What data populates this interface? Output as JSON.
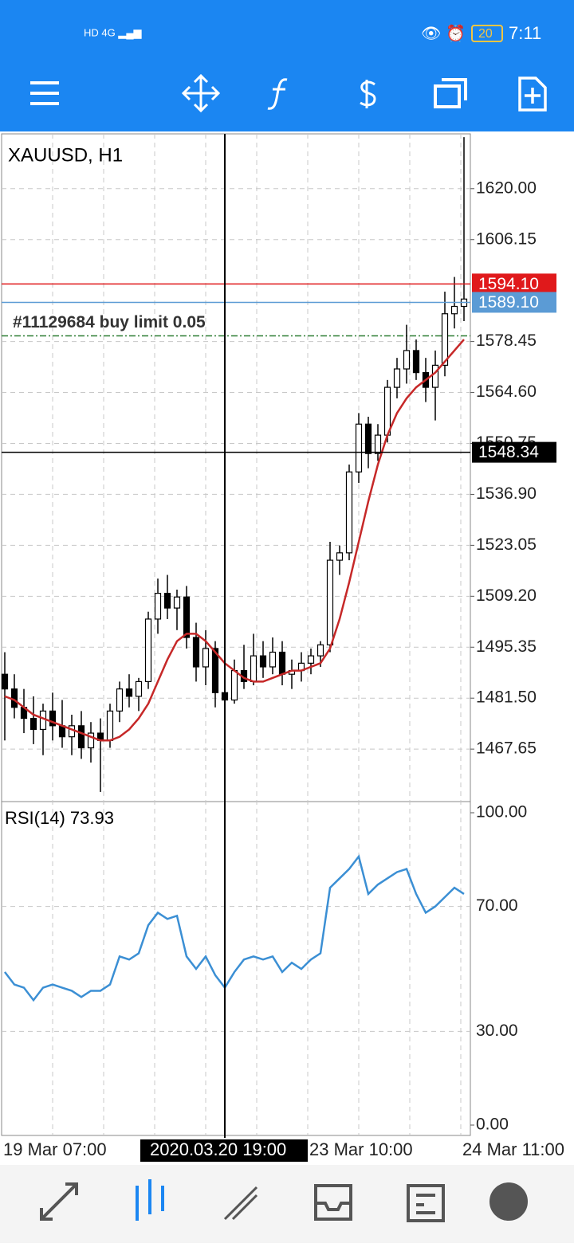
{
  "status_bar": {
    "time": "7:11",
    "battery": "20"
  },
  "chart_data": {
    "type": "candlestick",
    "title": "XAUUSD, H1",
    "candles": [
      [
        1488,
        1494,
        1470,
        1484
      ],
      [
        1484,
        1488,
        1476,
        1479
      ],
      [
        1479,
        1484,
        1472,
        1476
      ],
      [
        1476,
        1482,
        1469,
        1473
      ],
      [
        1473,
        1480,
        1466,
        1478
      ],
      [
        1478,
        1483,
        1470,
        1474
      ],
      [
        1474,
        1481,
        1468,
        1471
      ],
      [
        1471,
        1477,
        1466,
        1474
      ],
      [
        1474,
        1478,
        1465,
        1468
      ],
      [
        1468,
        1475,
        1464,
        1472
      ],
      [
        1472,
        1476,
        1456,
        1470
      ],
      [
        1470,
        1480,
        1468,
        1478
      ],
      [
        1478,
        1486,
        1475,
        1484
      ],
      [
        1484,
        1488,
        1479,
        1482
      ],
      [
        1482,
        1487,
        1478,
        1486
      ],
      [
        1486,
        1505,
        1484,
        1503
      ],
      [
        1503,
        1514,
        1499,
        1510
      ],
      [
        1510,
        1515,
        1503,
        1506
      ],
      [
        1506,
        1511,
        1500,
        1509
      ],
      [
        1509,
        1512,
        1495,
        1498
      ],
      [
        1498,
        1502,
        1486,
        1490
      ],
      [
        1490,
        1500,
        1485,
        1495
      ],
      [
        1495,
        1497,
        1479,
        1483
      ],
      [
        1483,
        1488,
        1478,
        1481
      ],
      [
        1481,
        1492,
        1480,
        1489
      ],
      [
        1489,
        1496,
        1484,
        1486
      ],
      [
        1486,
        1499,
        1485,
        1493
      ],
      [
        1493,
        1497,
        1487,
        1490
      ],
      [
        1490,
        1498,
        1488,
        1494
      ],
      [
        1494,
        1497,
        1485,
        1488
      ],
      [
        1488,
        1492,
        1484,
        1489
      ],
      [
        1489,
        1494,
        1486,
        1491
      ],
      [
        1491,
        1495,
        1488,
        1493
      ],
      [
        1493,
        1497,
        1490,
        1496
      ],
      [
        1496,
        1524,
        1494,
        1519
      ],
      [
        1519,
        1523,
        1515,
        1521
      ],
      [
        1521,
        1545,
        1519,
        1543
      ],
      [
        1543,
        1559,
        1540,
        1556
      ],
      [
        1556,
        1558,
        1544,
        1548
      ],
      [
        1548,
        1556,
        1546,
        1553
      ],
      [
        1553,
        1568,
        1551,
        1566
      ],
      [
        1566,
        1574,
        1563,
        1571
      ],
      [
        1571,
        1583,
        1567,
        1576
      ],
      [
        1576,
        1579,
        1568,
        1570
      ],
      [
        1570,
        1574,
        1562,
        1566
      ],
      [
        1566,
        1576,
        1557,
        1572
      ],
      [
        1572,
        1592,
        1569,
        1586
      ],
      [
        1586,
        1596,
        1582,
        1588
      ],
      [
        1588,
        1634,
        1584,
        1590
      ]
    ],
    "ma": {
      "color": "#c62828",
      "values": [
        1482,
        1481,
        1479,
        1477,
        1476,
        1475,
        1474,
        1473,
        1472,
        1471,
        1470,
        1470,
        1471,
        1473,
        1476,
        1480,
        1486,
        1492,
        1497,
        1499,
        1499,
        1497,
        1494,
        1491,
        1489,
        1487,
        1486,
        1486,
        1487,
        1488,
        1489,
        1489,
        1490,
        1491,
        1495,
        1503,
        1513,
        1524,
        1535,
        1545,
        1553,
        1559,
        1563,
        1566,
        1568,
        1570,
        1573,
        1576,
        1579
      ]
    },
    "ylim": [
      1453.6,
      1634.9
    ],
    "yticks": [
      {
        "value": 1620,
        "label": "1620.00"
      },
      {
        "value": 1606.15,
        "label": "1606.15"
      },
      {
        "value": 1578.45,
        "label": "1578.45"
      },
      {
        "value": 1564.6,
        "label": "1564.60"
      },
      {
        "value": 1550.75,
        "label": "1550.75"
      },
      {
        "value": 1536.9,
        "label": "1536.90"
      },
      {
        "value": 1523.05,
        "label": "1523.05"
      },
      {
        "value": 1509.2,
        "label": "1509.20"
      },
      {
        "value": 1495.35,
        "label": "1495.35"
      },
      {
        "value": 1481.5,
        "label": "1481.50"
      },
      {
        "value": 1467.65,
        "label": "1467.65"
      }
    ],
    "price_lines": [
      {
        "value": 1594.1,
        "label": "1594.10",
        "color": "#e0191b"
      },
      {
        "value": 1589.1,
        "label": "1589.10",
        "color": "#5b9bd5"
      },
      {
        "value": 1548.34,
        "label": "1548.34",
        "color": "#000000"
      }
    ],
    "order": {
      "value": 1580,
      "label": "#11129684 buy limit 0.05",
      "color": "#2e7d32"
    },
    "xlabels": [
      "19 Mar 07:00",
      "2020.03.20 19:00",
      "23 Mar 10:00",
      "24 Mar 11:00"
    ],
    "rsi": {
      "title": "RSI(14) 73.93",
      "color": "#3b8fd4",
      "values": [
        49,
        45,
        44,
        40,
        44,
        45,
        44,
        43,
        41,
        43,
        43,
        45,
        54,
        53,
        55,
        64,
        68,
        66,
        67,
        54,
        50,
        54,
        48,
        44,
        49,
        53,
        54,
        53,
        54,
        49,
        52,
        50,
        53,
        55,
        76,
        79,
        82,
        86,
        74,
        77,
        79,
        81,
        82,
        74,
        68,
        70,
        73,
        76,
        74
      ],
      "ylim": [
        0,
        100
      ],
      "yticks": [
        {
          "value": 100,
          "label": "100.00"
        },
        {
          "value": 70,
          "label": "70.00"
        },
        {
          "value": 30,
          "label": "30.00"
        },
        {
          "value": 0,
          "label": "0.00"
        }
      ]
    }
  }
}
